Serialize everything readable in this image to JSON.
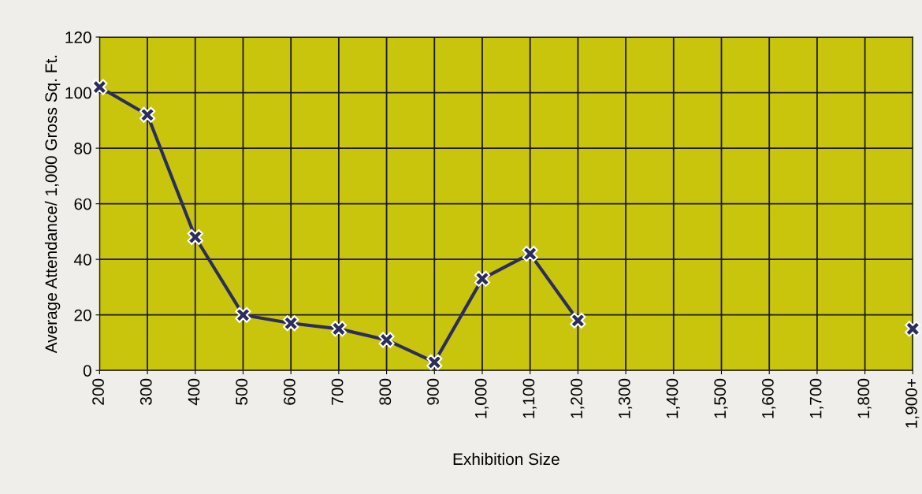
{
  "chart_data": {
    "type": "line",
    "xlabel": "Exhibition Size",
    "ylabel": "Average Attendance/ 1,000 Gross Sq. Ft.",
    "categories": [
      "200",
      "300",
      "400",
      "500",
      "600",
      "700",
      "800",
      "900",
      "1,000",
      "1,100",
      "1,200",
      "1,300",
      "1,400",
      "1,500",
      "1,600",
      "1,700",
      "1,800",
      "1,900+"
    ],
    "series": [
      {
        "color": "#2b2d5e",
        "values": [
          102,
          92,
          48,
          20,
          17,
          15,
          11,
          3,
          33,
          42,
          18,
          null,
          null,
          null,
          null,
          null,
          null,
          15
        ]
      }
    ],
    "ylim": [
      0,
      120
    ],
    "yticks": [
      0,
      20,
      40,
      60,
      80,
      100,
      120
    ],
    "grid": true,
    "marker": "cross",
    "line_style": "solid",
    "legend": false
  }
}
